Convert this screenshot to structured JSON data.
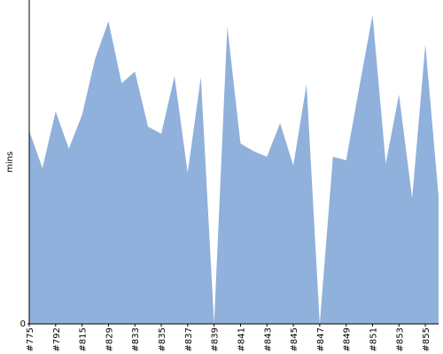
{
  "chart_data": {
    "type": "area",
    "y_label": "mins",
    "categories": [
      "#775",
      null,
      "#792",
      null,
      "#815",
      null,
      "#829",
      null,
      "#833",
      null,
      "#835",
      null,
      "#837",
      null,
      "#839",
      null,
      "#841",
      null,
      "#843",
      null,
      "#845",
      null,
      "#847",
      null,
      "#849",
      null,
      "#851",
      null,
      "#853",
      null,
      "#855",
      null
    ],
    "values": [
      59.6,
      48.1,
      65.6,
      54.1,
      64.5,
      82.0,
      93.4,
      74.3,
      77.9,
      60.9,
      58.7,
      76.5,
      46.7,
      76.2,
      0,
      91.8,
      55.7,
      53.3,
      51.6,
      62.0,
      48.9,
      74.0,
      0,
      51.6,
      50.5,
      73.2,
      95.4,
      49.5,
      70.8,
      38.8,
      86.3,
      39.3
    ],
    "color": "#8fb1db",
    "ylim": [
      0,
      100
    ],
    "yticks": [
      0
    ]
  }
}
